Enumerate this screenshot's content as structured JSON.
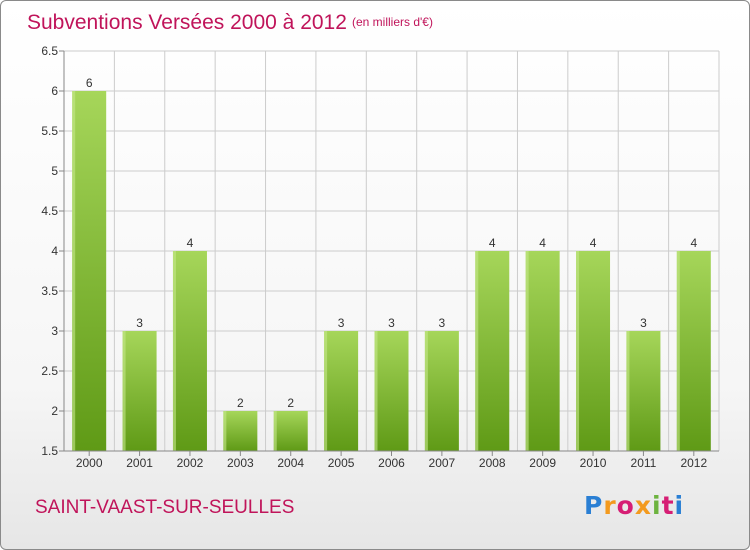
{
  "title": "Subventions Versées 2000 à 2012",
  "unit_note": "(en milliers d'€)",
  "commune": "SAINT-VAAST-SUR-SEULLES",
  "logo_text": "Proxiti",
  "colors": {
    "bar_top": "#a6d65a",
    "bar_bottom": "#5f9a16",
    "text_accent": "#c0145a",
    "grid": "#cccccc"
  },
  "chart_data": {
    "type": "bar",
    "categories": [
      "2000",
      "2001",
      "2002",
      "2003",
      "2004",
      "2005",
      "2006",
      "2007",
      "2008",
      "2009",
      "2010",
      "2011",
      "2012"
    ],
    "values": [
      6,
      3,
      4,
      2,
      2,
      3,
      3,
      3,
      4,
      4,
      4,
      3,
      4
    ],
    "value_labels": [
      "6",
      "3",
      "4",
      "2",
      "2",
      "3",
      "3",
      "3",
      "4",
      "4",
      "4",
      "3",
      "4"
    ],
    "y_ticks": [
      "1.5",
      "2",
      "2.5",
      "3",
      "3.5",
      "4",
      "4.5",
      "5",
      "5.5",
      "6",
      "6.5"
    ],
    "ylim": [
      1.5,
      6.5
    ],
    "grid": true,
    "legend": "none"
  }
}
